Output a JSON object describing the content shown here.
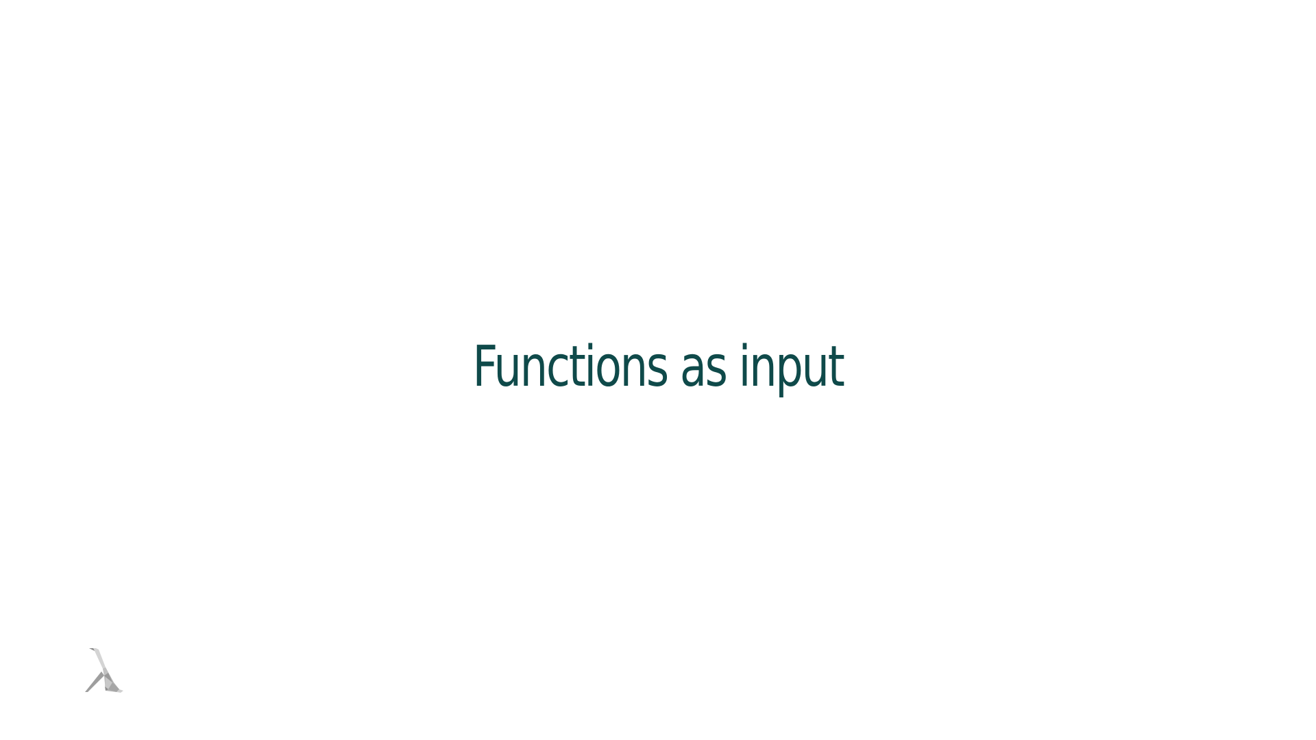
{
  "slide": {
    "title": "Functions as input",
    "title_color": "#0f4a4a",
    "background": "#ffffff"
  },
  "logo": {
    "icon": "lambda-logo-icon",
    "color": "#b9b9b9"
  }
}
